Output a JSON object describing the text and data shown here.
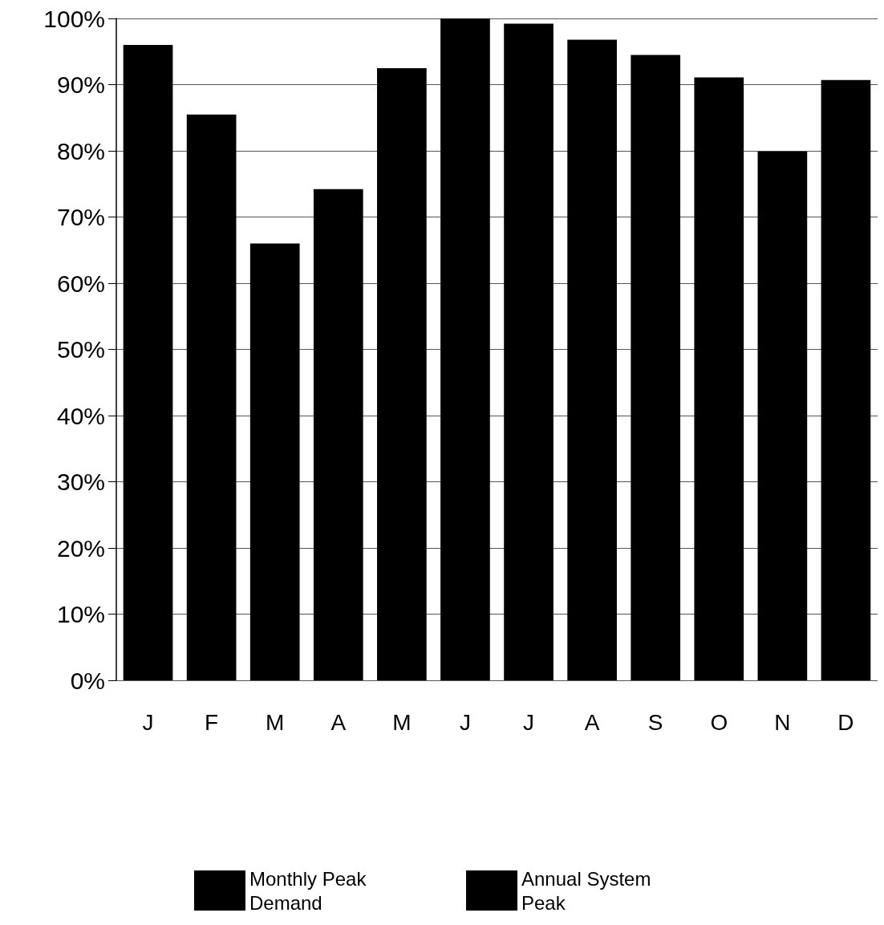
{
  "chart_data": {
    "type": "bar",
    "stacked": true,
    "categories": [
      "J",
      "F",
      "M",
      "A",
      "M",
      "J",
      "J",
      "A",
      "S",
      "O",
      "N",
      "D"
    ],
    "series": [
      {
        "name": "Monthly Peak Demand",
        "color": "#000000",
        "values": [
          96,
          85.5,
          66,
          74.2,
          92.5,
          null,
          99.2,
          96.8,
          94.5,
          91.1,
          79.9,
          90.7
        ]
      },
      {
        "name": "Annual System Peak",
        "color": "#000000",
        "values": [
          null,
          null,
          null,
          null,
          null,
          100,
          null,
          null,
          null,
          null,
          null,
          null
        ]
      }
    ],
    "ylim": [
      0,
      100
    ],
    "yticks": [
      {
        "value": 0,
        "label": "0%"
      },
      {
        "value": 10,
        "label": "10%"
      },
      {
        "value": 20,
        "label": "20%"
      },
      {
        "value": 30,
        "label": "30%"
      },
      {
        "value": 40,
        "label": "40%"
      },
      {
        "value": 50,
        "label": "50%"
      },
      {
        "value": 60,
        "label": "60%"
      },
      {
        "value": 70,
        "label": "70%"
      },
      {
        "value": 80,
        "label": "80%"
      },
      {
        "value": 90,
        "label": "90%"
      },
      {
        "value": 100,
        "label": "100%"
      }
    ],
    "grid": "y",
    "legend": "bottom"
  }
}
